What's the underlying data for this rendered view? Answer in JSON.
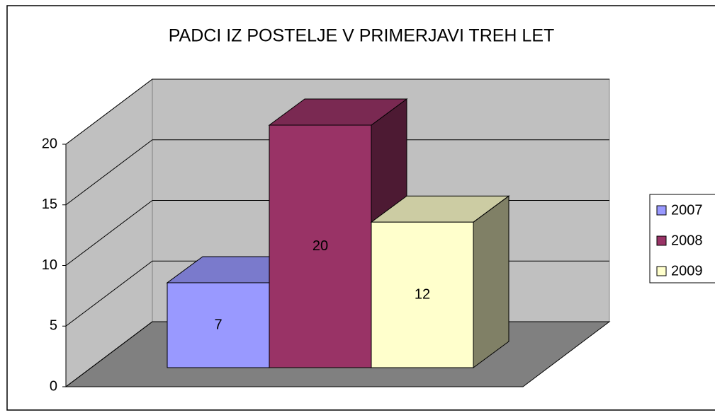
{
  "chart_data": {
    "type": "bar3d",
    "title": "PADCI IZ POSTELJE V PRIMERJAVI TREH LET",
    "series": [
      {
        "name": "2007",
        "color": "#9999ff",
        "values": [
          7
        ]
      },
      {
        "name": "2008",
        "color": "#993366",
        "values": [
          20
        ]
      },
      {
        "name": "2009",
        "color": "#ffffcc",
        "values": [
          12
        ]
      }
    ],
    "ylim": [
      0,
      20
    ],
    "yticks": [
      0,
      5,
      10,
      15,
      20
    ],
    "grid": true,
    "legend": "right"
  }
}
